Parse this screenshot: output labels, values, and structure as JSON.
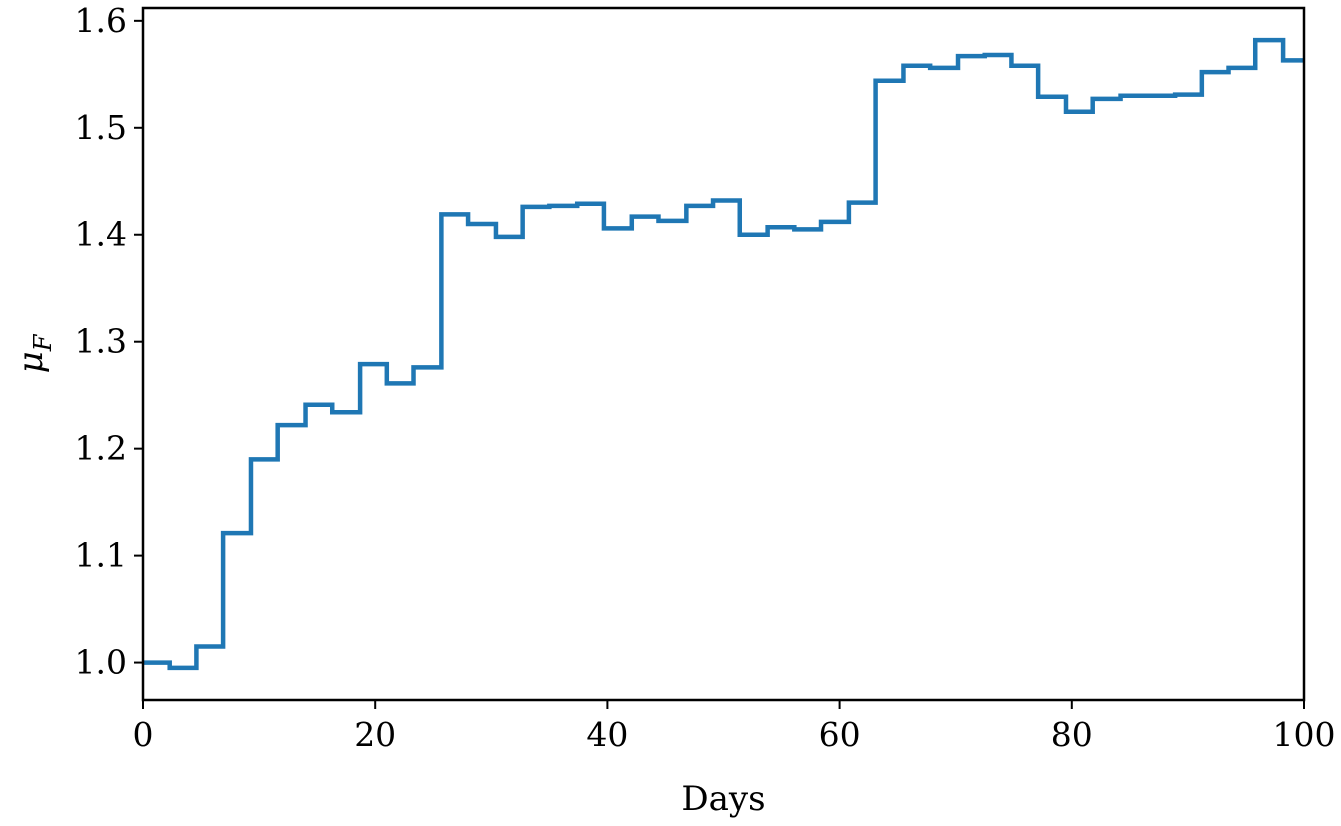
{
  "chart_data": {
    "type": "line",
    "step": true,
    "xlabel": "Days",
    "ylabel": "μ",
    "ylabel_subscript": "F",
    "xlim": [
      0,
      100
    ],
    "ylim": [
      0.965,
      1.612
    ],
    "xticks": [
      0,
      20,
      40,
      60,
      80,
      100
    ],
    "xtick_labels": [
      "0",
      "20",
      "40",
      "60",
      "80",
      "100"
    ],
    "yticks": [
      1.0,
      1.1,
      1.2,
      1.3,
      1.4,
      1.5,
      1.6
    ],
    "ytick_labels": [
      "1.0",
      "1.1",
      "1.2",
      "1.3",
      "1.4",
      "1.5",
      "1.6"
    ],
    "grid": false,
    "legend": false,
    "series": [
      {
        "color": "#1f77b4",
        "x": [
          0,
          2.3,
          4.6,
          6.9,
          9.3,
          11.6,
          14.0,
          16.3,
          18.7,
          21.0,
          23.3,
          25.7,
          28.0,
          30.4,
          32.7,
          35.0,
          37.4,
          39.7,
          42.1,
          44.4,
          46.8,
          49.1,
          51.4,
          53.8,
          56.1,
          58.4,
          60.8,
          63.1,
          65.5,
          67.8,
          70.2,
          72.5,
          74.8,
          77.1,
          79.5,
          81.8,
          84.2,
          86.5,
          88.9,
          91.2,
          93.5,
          95.8,
          98.2,
          100
        ],
        "y": [
          1.0,
          0.995,
          1.015,
          1.121,
          1.19,
          1.222,
          1.241,
          1.234,
          1.279,
          1.261,
          1.276,
          1.419,
          1.41,
          1.398,
          1.426,
          1.427,
          1.429,
          1.406,
          1.417,
          1.413,
          1.427,
          1.432,
          1.4,
          1.407,
          1.405,
          1.412,
          1.43,
          1.544,
          1.558,
          1.556,
          1.567,
          1.568,
          1.558,
          1.529,
          1.515,
          1.527,
          1.53,
          1.53,
          1.531,
          1.552,
          1.556,
          1.582,
          1.563,
          1.563
        ]
      }
    ]
  }
}
